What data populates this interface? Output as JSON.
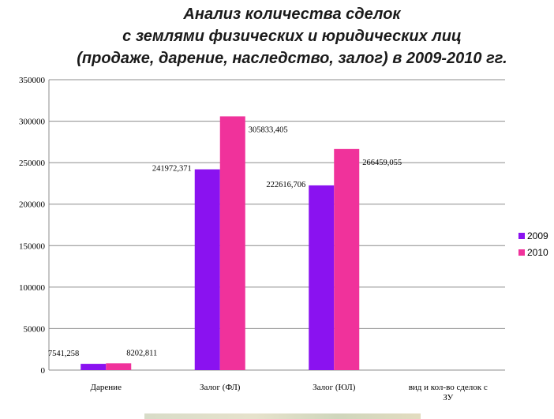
{
  "chart_data": {
    "type": "bar",
    "title": "Анализ количества сделок\nс землями физических и юридических лиц\n(продаже, дарение, наследство, залог) в 2009-2010 гг.",
    "categories": [
      "Дарение",
      "Залог (ФЛ)",
      "Залог (ЮЛ)",
      "вид и кол-во сделок с ЗУ"
    ],
    "series": [
      {
        "name": "2009",
        "color": "#8a12f0",
        "values": [
          7541.258,
          241972.371,
          222616.706,
          null
        ],
        "labels": [
          "7541,258",
          "241972,371",
          "222616,706",
          ""
        ]
      },
      {
        "name": "2010",
        "color": "#f0329b",
        "values": [
          8202.811,
          305833.405,
          266459.055,
          null
        ],
        "labels": [
          "8202,811",
          "305833,405",
          "266459,055",
          ""
        ]
      }
    ],
    "ylim": [
      0,
      350000
    ],
    "yticks": [
      0,
      50000,
      100000,
      150000,
      200000,
      250000,
      300000,
      350000
    ],
    "grid": true,
    "legend_position": "right"
  }
}
